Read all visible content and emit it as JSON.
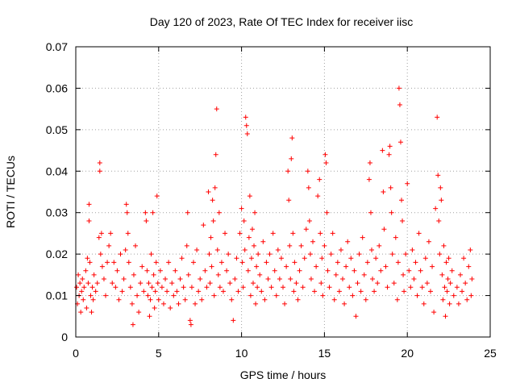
{
  "chart_data": {
    "type": "scatter",
    "title": "Day 120 of 2023, Rate Of TEC Index for receiver iisc",
    "xlabel": "GPS time / hours",
    "ylabel": "ROTI / TECUs",
    "xlim": [
      0,
      25
    ],
    "ylim": [
      0,
      0.07
    ],
    "xticks": [
      "0",
      "5",
      "10",
      "15",
      "20",
      "25"
    ],
    "yticks": [
      "0",
      "0.01",
      "0.02",
      "0.03",
      "0.04",
      "0.05",
      "0.06",
      "0.07"
    ],
    "grid": true,
    "marker": "+",
    "marker_color": "#ff0000",
    "series": [
      {
        "points": [
          [
            0.05,
            0.012
          ],
          [
            0.1,
            0.008
          ],
          [
            0.15,
            0.015
          ],
          [
            0.2,
            0.01
          ],
          [
            0.25,
            0.013
          ],
          [
            0.3,
            0.006
          ],
          [
            0.35,
            0.011
          ],
          [
            0.4,
            0.014
          ],
          [
            0.45,
            0.009
          ],
          [
            0.5,
            0.012
          ],
          [
            0.6,
            0.016
          ],
          [
            0.65,
            0.007
          ],
          [
            0.7,
            0.019
          ],
          [
            0.75,
            0.013
          ],
          [
            0.8,
            0.032
          ],
          [
            0.8,
            0.028
          ],
          [
            0.85,
            0.018
          ],
          [
            0.9,
            0.01
          ],
          [
            0.95,
            0.006
          ],
          [
            1.0,
            0.012
          ],
          [
            1.05,
            0.009
          ],
          [
            1.1,
            0.015
          ],
          [
            1.2,
            0.011
          ],
          [
            1.3,
            0.013
          ],
          [
            1.4,
            0.024
          ],
          [
            1.45,
            0.042
          ],
          [
            1.45,
            0.04
          ],
          [
            1.5,
            0.02
          ],
          [
            1.55,
            0.025
          ],
          [
            1.6,
            0.017
          ],
          [
            1.7,
            0.014
          ],
          [
            1.8,
            0.01
          ],
          [
            1.9,
            0.018
          ],
          [
            2.0,
            0.022
          ],
          [
            2.1,
            0.025
          ],
          [
            2.2,
            0.013
          ],
          [
            2.3,
            0.018
          ],
          [
            2.4,
            0.012
          ],
          [
            2.5,
            0.016
          ],
          [
            2.6,
            0.009
          ],
          [
            2.7,
            0.02
          ],
          [
            2.8,
            0.011
          ],
          [
            2.9,
            0.014
          ],
          [
            3.0,
            0.021
          ],
          [
            3.05,
            0.032
          ],
          [
            3.1,
            0.03
          ],
          [
            3.15,
            0.025
          ],
          [
            3.2,
            0.018
          ],
          [
            3.3,
            0.012
          ],
          [
            3.4,
            0.008
          ],
          [
            3.45,
            0.003
          ],
          [
            3.5,
            0.015
          ],
          [
            3.6,
            0.022
          ],
          [
            3.7,
            0.01
          ],
          [
            3.8,
            0.006
          ],
          [
            3.9,
            0.013
          ],
          [
            4.0,
            0.017
          ],
          [
            4.1,
            0.011
          ],
          [
            4.2,
            0.03
          ],
          [
            4.25,
            0.028
          ],
          [
            4.3,
            0.016
          ],
          [
            4.35,
            0.01
          ],
          [
            4.4,
            0.013
          ],
          [
            4.45,
            0.005
          ],
          [
            4.5,
            0.009
          ],
          [
            4.55,
            0.02
          ],
          [
            4.6,
            0.012
          ],
          [
            4.65,
            0.03
          ],
          [
            4.7,
            0.015
          ],
          [
            4.75,
            0.007
          ],
          [
            4.8,
            0.011
          ],
          [
            4.85,
            0.018
          ],
          [
            4.9,
            0.034
          ],
          [
            4.95,
            0.013
          ],
          [
            5.0,
            0.009
          ],
          [
            5.1,
            0.016
          ],
          [
            5.2,
            0.012
          ],
          [
            5.3,
            0.008
          ],
          [
            5.4,
            0.014
          ],
          [
            5.5,
            0.011
          ],
          [
            5.6,
            0.018
          ],
          [
            5.7,
            0.007
          ],
          [
            5.8,
            0.013
          ],
          [
            5.9,
            0.01
          ],
          [
            6.0,
            0.016
          ],
          [
            6.1,
            0.011
          ],
          [
            6.2,
            0.008
          ],
          [
            6.3,
            0.014
          ],
          [
            6.4,
            0.019
          ],
          [
            6.5,
            0.012
          ],
          [
            6.6,
            0.009
          ],
          [
            6.7,
            0.022
          ],
          [
            6.75,
            0.03
          ],
          [
            6.8,
            0.015
          ],
          [
            6.9,
            0.004
          ],
          [
            6.95,
            0.003
          ],
          [
            7.0,
            0.012
          ],
          [
            7.1,
            0.018
          ],
          [
            7.2,
            0.008
          ],
          [
            7.3,
            0.021
          ],
          [
            7.4,
            0.011
          ],
          [
            7.5,
            0.014
          ],
          [
            7.6,
            0.009
          ],
          [
            7.7,
            0.027
          ],
          [
            7.8,
            0.016
          ],
          [
            7.9,
            0.012
          ],
          [
            8.0,
            0.035
          ],
          [
            8.05,
            0.02
          ],
          [
            8.1,
            0.013
          ],
          [
            8.15,
            0.024
          ],
          [
            8.2,
            0.017
          ],
          [
            8.25,
            0.033
          ],
          [
            8.3,
            0.028
          ],
          [
            8.35,
            0.01
          ],
          [
            8.4,
            0.036
          ],
          [
            8.45,
            0.044
          ],
          [
            8.5,
            0.055
          ],
          [
            8.55,
            0.021
          ],
          [
            8.6,
            0.015
          ],
          [
            8.65,
            0.03
          ],
          [
            8.7,
            0.012
          ],
          [
            8.8,
            0.018
          ],
          [
            8.9,
            0.011
          ],
          [
            9.0,
            0.025
          ],
          [
            9.1,
            0.016
          ],
          [
            9.2,
            0.02
          ],
          [
            9.3,
            0.013
          ],
          [
            9.4,
            0.009
          ],
          [
            9.5,
            0.004
          ],
          [
            9.6,
            0.014
          ],
          [
            9.7,
            0.019
          ],
          [
            9.8,
            0.011
          ],
          [
            9.9,
            0.025
          ],
          [
            10.0,
            0.031
          ],
          [
            10.05,
            0.018
          ],
          [
            10.1,
            0.012
          ],
          [
            10.15,
            0.028
          ],
          [
            10.2,
            0.021
          ],
          [
            10.25,
            0.053
          ],
          [
            10.3,
            0.051
          ],
          [
            10.35,
            0.049
          ],
          [
            10.4,
            0.016
          ],
          [
            10.45,
            0.024
          ],
          [
            10.5,
            0.034
          ],
          [
            10.55,
            0.01
          ],
          [
            10.6,
            0.019
          ],
          [
            10.65,
            0.026
          ],
          [
            10.7,
            0.013
          ],
          [
            10.75,
            0.022
          ],
          [
            10.8,
            0.03
          ],
          [
            10.85,
            0.008
          ],
          [
            10.9,
            0.017
          ],
          [
            10.95,
            0.012
          ],
          [
            11.0,
            0.02
          ],
          [
            11.1,
            0.015
          ],
          [
            11.2,
            0.011
          ],
          [
            11.3,
            0.023
          ],
          [
            11.4,
            0.009
          ],
          [
            11.5,
            0.018
          ],
          [
            11.6,
            0.014
          ],
          [
            11.7,
            0.02
          ],
          [
            11.8,
            0.012
          ],
          [
            11.9,
            0.025
          ],
          [
            12.0,
            0.016
          ],
          [
            12.1,
            0.01
          ],
          [
            12.2,
            0.021
          ],
          [
            12.3,
            0.014
          ],
          [
            12.4,
            0.019
          ],
          [
            12.5,
            0.012
          ],
          [
            12.6,
            0.008
          ],
          [
            12.7,
            0.017
          ],
          [
            12.8,
            0.04
          ],
          [
            12.85,
            0.033
          ],
          [
            12.9,
            0.022
          ],
          [
            12.95,
            0.014
          ],
          [
            13.0,
            0.043
          ],
          [
            13.05,
            0.048
          ],
          [
            13.1,
            0.025
          ],
          [
            13.15,
            0.011
          ],
          [
            13.2,
            0.018
          ],
          [
            13.3,
            0.013
          ],
          [
            13.4,
            0.009
          ],
          [
            13.5,
            0.016
          ],
          [
            13.6,
            0.022
          ],
          [
            13.7,
            0.012
          ],
          [
            13.8,
            0.019
          ],
          [
            13.9,
            0.026
          ],
          [
            14.0,
            0.04
          ],
          [
            14.05,
            0.036
          ],
          [
            14.1,
            0.028
          ],
          [
            14.15,
            0.02
          ],
          [
            14.2,
            0.014
          ],
          [
            14.3,
            0.023
          ],
          [
            14.4,
            0.011
          ],
          [
            14.5,
            0.017
          ],
          [
            14.6,
            0.034
          ],
          [
            14.7,
            0.038
          ],
          [
            14.75,
            0.025
          ],
          [
            14.8,
            0.013
          ],
          [
            14.85,
            0.019
          ],
          [
            14.9,
            0.01
          ],
          [
            15.0,
            0.022
          ],
          [
            15.05,
            0.044
          ],
          [
            15.1,
            0.042
          ],
          [
            15.15,
            0.03
          ],
          [
            15.2,
            0.016
          ],
          [
            15.3,
            0.012
          ],
          [
            15.4,
            0.02
          ],
          [
            15.5,
            0.025
          ],
          [
            15.6,
            0.009
          ],
          [
            15.7,
            0.015
          ],
          [
            15.8,
            0.018
          ],
          [
            15.9,
            0.011
          ],
          [
            16.0,
            0.021
          ],
          [
            16.1,
            0.014
          ],
          [
            16.2,
            0.008
          ],
          [
            16.3,
            0.017
          ],
          [
            16.4,
            0.023
          ],
          [
            16.5,
            0.012
          ],
          [
            16.6,
            0.019
          ],
          [
            16.7,
            0.01
          ],
          [
            16.8,
            0.016
          ],
          [
            16.9,
            0.005
          ],
          [
            17.0,
            0.013
          ],
          [
            17.1,
            0.02
          ],
          [
            17.2,
            0.011
          ],
          [
            17.3,
            0.024
          ],
          [
            17.4,
            0.015
          ],
          [
            17.5,
            0.009
          ],
          [
            17.6,
            0.018
          ],
          [
            17.7,
            0.038
          ],
          [
            17.75,
            0.042
          ],
          [
            17.8,
            0.03
          ],
          [
            17.85,
            0.021
          ],
          [
            17.9,
            0.014
          ],
          [
            18.0,
            0.011
          ],
          [
            18.1,
            0.019
          ],
          [
            18.2,
            0.013
          ],
          [
            18.3,
            0.022
          ],
          [
            18.4,
            0.016
          ],
          [
            18.5,
            0.045
          ],
          [
            18.55,
            0.035
          ],
          [
            18.6,
            0.026
          ],
          [
            18.7,
            0.017
          ],
          [
            18.8,
            0.012
          ],
          [
            18.9,
            0.044
          ],
          [
            18.95,
            0.046
          ],
          [
            19.0,
            0.036
          ],
          [
            19.05,
            0.03
          ],
          [
            19.1,
            0.02
          ],
          [
            19.2,
            0.013
          ],
          [
            19.3,
            0.024
          ],
          [
            19.4,
            0.009
          ],
          [
            19.45,
            0.018
          ],
          [
            19.5,
            0.06
          ],
          [
            19.55,
            0.056
          ],
          [
            19.6,
            0.047
          ],
          [
            19.65,
            0.033
          ],
          [
            19.7,
            0.028
          ],
          [
            19.75,
            0.015
          ],
          [
            19.8,
            0.011
          ],
          [
            19.9,
            0.02
          ],
          [
            20.0,
            0.037
          ],
          [
            20.1,
            0.016
          ],
          [
            20.2,
            0.012
          ],
          [
            20.3,
            0.021
          ],
          [
            20.4,
            0.014
          ],
          [
            20.5,
            0.018
          ],
          [
            20.6,
            0.01
          ],
          [
            20.7,
            0.025
          ],
          [
            20.8,
            0.016
          ],
          [
            20.9,
            0.012
          ],
          [
            21.0,
            0.008
          ],
          [
            21.1,
            0.019
          ],
          [
            21.2,
            0.013
          ],
          [
            21.3,
            0.023
          ],
          [
            21.4,
            0.011
          ],
          [
            21.5,
            0.017
          ],
          [
            21.6,
            0.006
          ],
          [
            21.7,
            0.031
          ],
          [
            21.8,
            0.053
          ],
          [
            21.85,
            0.039
          ],
          [
            21.9,
            0.028
          ],
          [
            21.95,
            0.02
          ],
          [
            22.0,
            0.036
          ],
          [
            22.05,
            0.033
          ],
          [
            22.1,
            0.015
          ],
          [
            22.15,
            0.009
          ],
          [
            22.2,
            0.022
          ],
          [
            22.25,
            0.012
          ],
          [
            22.3,
            0.005
          ],
          [
            22.35,
            0.018
          ],
          [
            22.4,
            0.011
          ],
          [
            22.45,
            0.014
          ],
          [
            22.5,
            0.019
          ],
          [
            22.55,
            0.008
          ],
          [
            22.6,
            0.013
          ],
          [
            22.7,
            0.016
          ],
          [
            22.8,
            0.01
          ],
          [
            23.0,
            0.012
          ],
          [
            23.1,
            0.008
          ],
          [
            23.2,
            0.015
          ],
          [
            23.3,
            0.011
          ],
          [
            23.4,
            0.019
          ],
          [
            23.5,
            0.013
          ],
          [
            23.6,
            0.009
          ],
          [
            23.7,
            0.017
          ],
          [
            23.8,
            0.021
          ],
          [
            23.85,
            0.01
          ],
          [
            23.9,
            0.014
          ]
        ]
      }
    ]
  }
}
